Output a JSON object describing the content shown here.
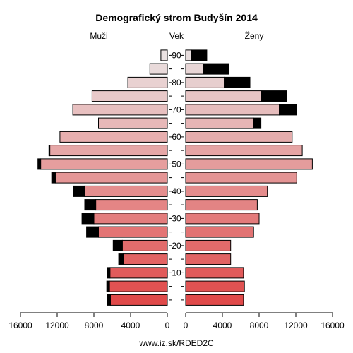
{
  "chart_data": {
    "type": "bar",
    "title": "Demografický strom Budyšín 2014",
    "left_label": "Muži",
    "center_label": "Vek",
    "right_label": "Ženy",
    "source": "www.iz.sk/RDED2C",
    "xlim": [
      0,
      16000
    ],
    "x_ticks": [
      "16000",
      "12000",
      "8000",
      "4000",
      "0",
      "0",
      "4000",
      "8000",
      "12000",
      "16000"
    ],
    "age_ticks": [
      "10",
      "20",
      "30",
      "40",
      "50",
      "60",
      "70",
      "80",
      "90"
    ],
    "age_groups": [
      "0-4",
      "5-9",
      "10-14",
      "15-19",
      "20-24",
      "25-29",
      "30-34",
      "35-39",
      "40-44",
      "45-49",
      "50-54",
      "55-59",
      "60-64",
      "65-69",
      "70-74",
      "75-79",
      "80-84",
      "85-89",
      "90+"
    ],
    "series": [
      {
        "name": "Muži",
        "values": [
          6200,
          6300,
          6250,
          4800,
          4900,
          7500,
          8000,
          7800,
          9000,
          12200,
          13800,
          12800,
          11700,
          7500,
          10300,
          8200,
          4300,
          1900,
          700
        ],
        "excess": [
          300,
          300,
          300,
          500,
          1000,
          1300,
          1300,
          1200,
          1200,
          400,
          300,
          100,
          0,
          0,
          0,
          0,
          0,
          0,
          0
        ]
      },
      {
        "name": "Ženy",
        "values": [
          6300,
          6400,
          6300,
          4900,
          4900,
          7400,
          8000,
          7800,
          8900,
          12100,
          13800,
          12700,
          11600,
          7400,
          10200,
          8200,
          4200,
          1900,
          600
        ],
        "excess": [
          0,
          0,
          0,
          0,
          0,
          0,
          0,
          0,
          0,
          0,
          0,
          0,
          0,
          800,
          1900,
          2800,
          2800,
          2800,
          1700
        ]
      }
    ],
    "excess_color": "#000000",
    "bar_stroke": "#000000"
  }
}
